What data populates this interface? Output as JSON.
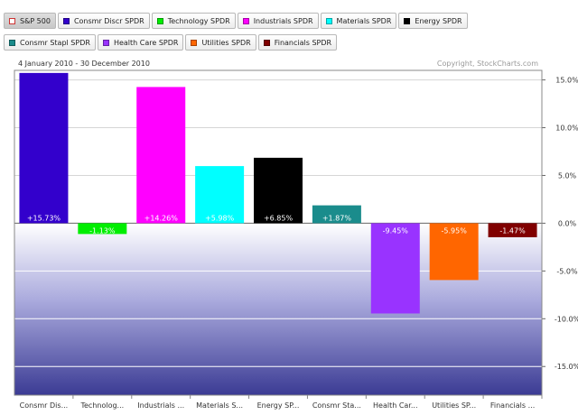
{
  "legend": {
    "row1": [
      {
        "label": "S&P 500",
        "color": "#ffffff",
        "hollow": true,
        "selected": true
      },
      {
        "label": "Consmr Discr SPDR",
        "color": "#3300cc"
      },
      {
        "label": "Technology SPDR",
        "color": "#00ee00"
      },
      {
        "label": "Industrials SPDR",
        "color": "#ff00ff"
      },
      {
        "label": "Materials SPDR",
        "color": "#00ffff"
      },
      {
        "label": "Energy SPDR",
        "color": "#000000"
      }
    ],
    "row2": [
      {
        "label": "Consmr Stapl SPDR",
        "color": "#1a8c8c"
      },
      {
        "label": "Health Care SPDR",
        "color": "#9933ff"
      },
      {
        "label": "Utilities SPDR",
        "color": "#ff6600"
      },
      {
        "label": "Financials SPDR",
        "color": "#800000"
      }
    ]
  },
  "header": {
    "date_range": "4 January 2010 - 30 December 2010",
    "copyright": "Copyright, StockCharts.com"
  },
  "chart_data": {
    "type": "bar",
    "categories": [
      "Consmr Dis...",
      "Technolog...",
      "Industrials ...",
      "Materials S...",
      "Energy SP...",
      "Consmr Sta...",
      "Health Car...",
      "Utilities SP...",
      "Financials ..."
    ],
    "values": [
      15.73,
      -1.13,
      14.26,
      5.98,
      6.85,
      1.87,
      -9.45,
      -5.95,
      -1.47
    ],
    "value_labels": [
      "+15.73%",
      "-1.13%",
      "+14.26%",
      "+5.98%",
      "+6.85%",
      "+1.87%",
      "-9.45%",
      "-5.95%",
      "-1.47%"
    ],
    "colors": [
      "#3300cc",
      "#00ee00",
      "#ff00ff",
      "#00ffff",
      "#000000",
      "#1a8c8c",
      "#9933ff",
      "#ff6600",
      "#800000"
    ],
    "y_ticks": [
      15,
      10,
      5,
      0,
      -5,
      -10,
      -15
    ],
    "y_tick_labels": [
      "15.0%",
      "10.0%",
      "5.0%",
      "0.0%",
      "-5.0%",
      "-10.0%",
      "-15.0%"
    ],
    "ylim": [
      -18,
      16
    ],
    "grid": true,
    "y_axis_side": "right"
  }
}
